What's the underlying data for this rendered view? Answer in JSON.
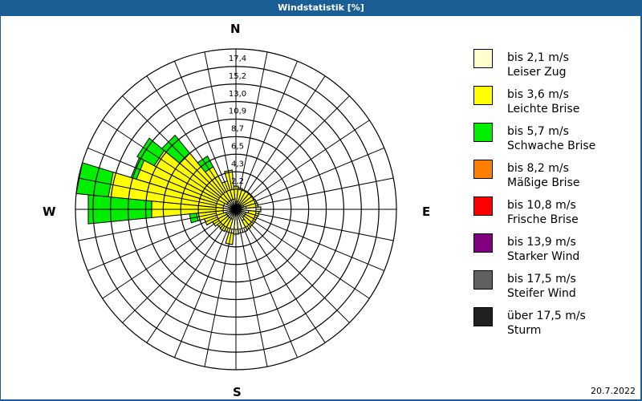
{
  "title": "Windstatistik [%]",
  "date": "20.7.2022",
  "compass": {
    "n": "N",
    "e": "E",
    "s": "S",
    "w": "W"
  },
  "legend": [
    {
      "range": "bis 2,1 m/s",
      "name": "Leiser Zug",
      "color": "#ffffcc"
    },
    {
      "range": "bis 3,6 m/s",
      "name": "Leichte Brise",
      "color": "#ffff00"
    },
    {
      "range": "bis 5,7 m/s",
      "name": "Schwache Brise",
      "color": "#00ee00"
    },
    {
      "range": "bis 8,2 m/s",
      "name": "Mäßige Brise",
      "color": "#ff8000"
    },
    {
      "range": "bis 10,8 m/s",
      "name": "Frische Brise",
      "color": "#ff0000"
    },
    {
      "range": "bis 13,9 m/s",
      "name": "Starker Wind",
      "color": "#800080"
    },
    {
      "range": "bis 17,5 m/s",
      "name": "Steifer Wind",
      "color": "#606060"
    },
    {
      "range": "über 17,5 m/s",
      "name": "Sturm",
      "color": "#202020"
    }
  ],
  "chart_data": {
    "type": "polar-stacked-bar (wind rose)",
    "title": "Windstatistik [%]",
    "radial_ticks": [
      "2,2",
      "4,3",
      "6,5",
      "8,7",
      "10,9",
      "13,0",
      "15,2",
      "17,4"
    ],
    "rmax": 17.4,
    "sectors": 32,
    "series_names": [
      "Leiser Zug",
      "Leichte Brise",
      "Schwache Brise",
      "Mäßige Brise",
      "Frische Brise",
      "Starker Wind",
      "Steifer Wind",
      "Sturm"
    ],
    "directions_deg": [
      0,
      11.25,
      22.5,
      33.75,
      45,
      56.25,
      67.5,
      78.75,
      90,
      101.25,
      112.5,
      123.75,
      135,
      146.25,
      157.5,
      168.75,
      180,
      191.25,
      202.5,
      213.75,
      225,
      236.25,
      247.5,
      258.75,
      270,
      281.25,
      292.5,
      303.75,
      315,
      326.25,
      337.5,
      348.75
    ],
    "cumulative_values": [
      [
        0.2,
        0.4,
        0.4
      ],
      [
        0.2,
        0.2,
        0.2
      ],
      [
        0.1,
        0.1,
        0.1
      ],
      [
        0.1,
        0.1,
        0.1
      ],
      [
        0.1,
        0.1,
        0.1
      ],
      [
        0.1,
        0.1,
        0.1
      ],
      [
        0.2,
        0.2,
        0.2
      ],
      [
        0.3,
        0.3,
        0.3
      ],
      [
        0.6,
        0.6,
        0.6
      ],
      [
        0.4,
        0.4,
        0.4
      ],
      [
        0.3,
        0.3,
        0.3
      ],
      [
        0.3,
        0.3,
        0.3
      ],
      [
        0.3,
        0.3,
        0.3
      ],
      [
        0.4,
        0.4,
        0.4
      ],
      [
        0.5,
        0.5,
        0.5
      ],
      [
        0.5,
        0.5,
        0.5
      ],
      [
        0.6,
        0.6,
        0.6
      ],
      [
        0.5,
        1.9,
        1.9
      ],
      [
        0.3,
        0.5,
        0.5
      ],
      [
        0.3,
        0.6,
        0.6
      ],
      [
        0.3,
        0.5,
        0.5
      ],
      [
        0.3,
        0.8,
        0.8
      ],
      [
        0.3,
        1.6,
        1.6
      ],
      [
        0.4,
        2.4,
        3.3
      ],
      [
        0.4,
        8.0,
        15.9
      ],
      [
        0.4,
        13.4,
        17.4
      ],
      [
        0.4,
        10.4,
        11.1
      ],
      [
        0.3,
        9.0,
        11.4
      ],
      [
        0.3,
        6.5,
        9.4
      ],
      [
        0.3,
        3.5,
        5.0
      ],
      [
        0.3,
        1.2,
        1.2
      ],
      [
        0.3,
        2.4,
        2.4
      ]
    ]
  }
}
